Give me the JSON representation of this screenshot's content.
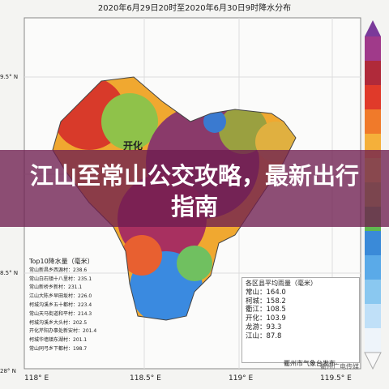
{
  "map": {
    "title": "2020年6月29日20时至2020年6月30日9时降水分布",
    "lat_labels": [
      "9.5° N",
      "8.5° N",
      "28° N"
    ],
    "lon_labels": [
      "118° E",
      "118.5° E",
      "119° E",
      "119.5° E"
    ],
    "place_label": "开化"
  },
  "banner": "江山至常山公交攻略，最新出行指南",
  "top10": {
    "title": "Top10降水量（毫米）",
    "items": [
      "常山新昌乡西源村：238.6",
      "常山白石镇十八里村：235.1",
      "常山新桥乡新村：231.1",
      "江山大陈乡早田坂村：226.0",
      "柯城沟溪乡五十都村：223.4",
      "常山天马街道和平村：214.3",
      "柯城沟溪乡大头村：202.5",
      "开化芹阳办事处新安村：201.4",
      "柯城华墙镇东湖村：201.1",
      "常山同弓乡下都村：198.7"
    ]
  },
  "averages": {
    "title": "各区县平均雨量（毫米）",
    "items": [
      "常山：164.0",
      "柯城：158.2",
      "衢江：108.5",
      "开化：103.9",
      "龙游：93.3",
      "江山：87.8"
    ]
  },
  "footer": "衢州市气象台发布",
  "watermark": "衢州广电传媒"
}
